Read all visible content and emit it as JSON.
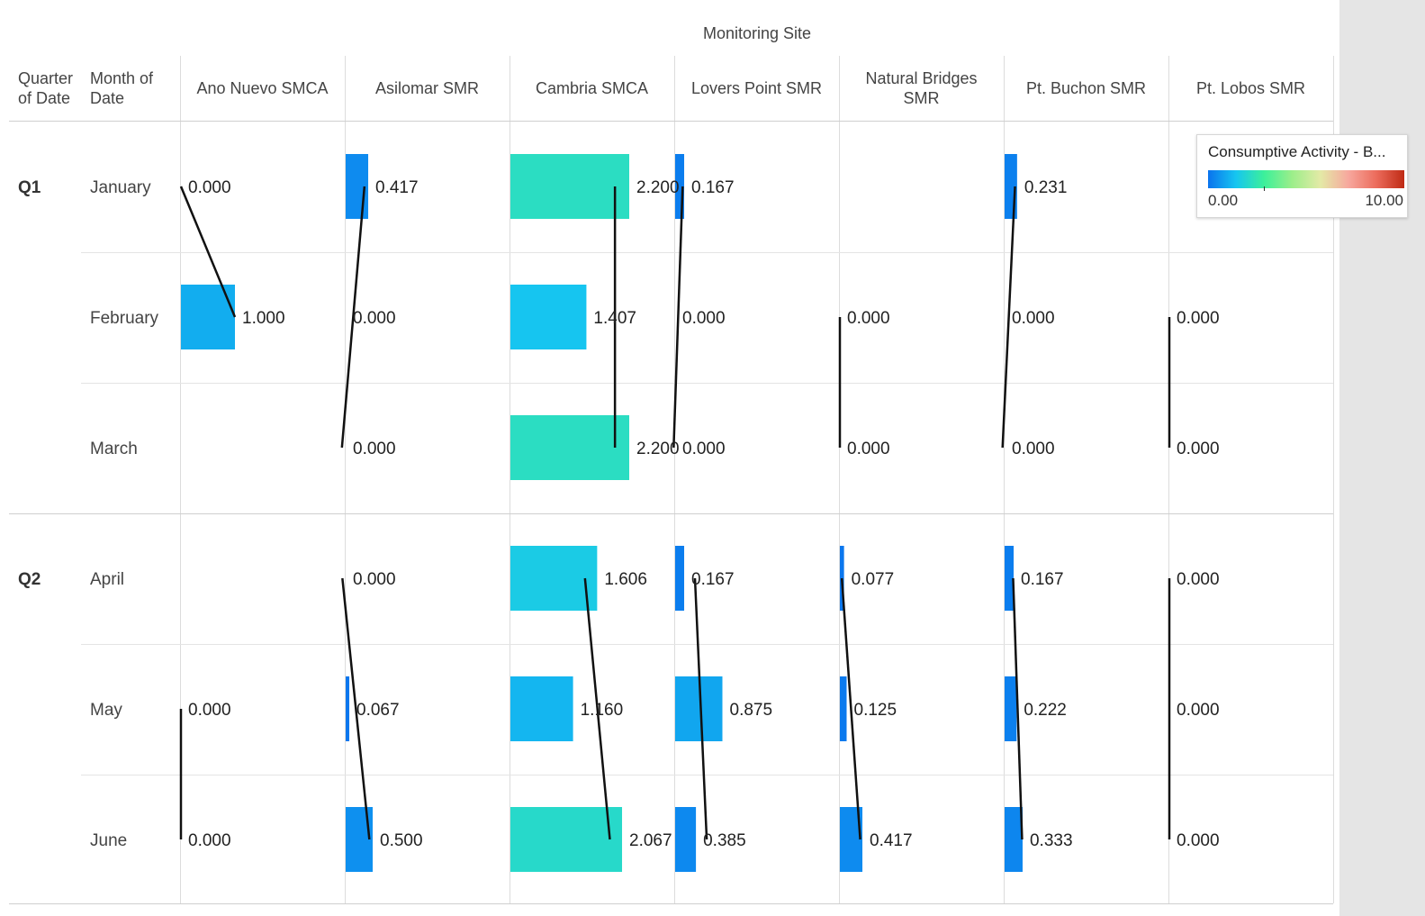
{
  "chart_data": {
    "type": "table",
    "column_header_title": "Monitoring Site",
    "row_headers": [
      "Quarter of Date",
      "Month of Date"
    ],
    "columns": [
      "Ano Nuevo SMCA",
      "Asilomar SMR",
      "Cambria SMCA",
      "Lovers Point SMR",
      "Natural Bridges SMR",
      "Pt. Buchon SMR",
      "Pt. Lobos SMR"
    ],
    "quarters": [
      {
        "label": "Q1",
        "months": [
          "January",
          "February",
          "March"
        ]
      },
      {
        "label": "Q2",
        "months": [
          "April",
          "May",
          "June"
        ]
      }
    ],
    "months": [
      "January",
      "February",
      "March",
      "April",
      "May",
      "June"
    ],
    "values": [
      [
        0.0,
        0.417,
        2.2,
        0.167,
        null,
        0.231,
        null
      ],
      [
        1.0,
        0.0,
        1.407,
        0.0,
        0.0,
        0.0,
        0.0
      ],
      [
        null,
        0.0,
        2.2,
        0.0,
        0.0,
        0.0,
        0.0
      ],
      [
        null,
        0.0,
        1.606,
        0.167,
        0.077,
        0.167,
        0.0
      ],
      [
        0.0,
        0.067,
        1.16,
        0.875,
        0.125,
        0.222,
        0.0
      ],
      [
        0.0,
        0.5,
        2.067,
        0.385,
        0.417,
        0.333,
        0.0
      ]
    ],
    "value_format": "0.000",
    "bar_scale_max": 2.5,
    "trend_lines": true,
    "legend": {
      "title": "Consumptive Activity - B...",
      "min_label": "0.00",
      "max_label": "10.00",
      "min": 0,
      "max": 10,
      "colors": [
        "#0a73ee",
        "#16c6f0",
        "#3cf09a",
        "#9cee8a",
        "#e3eaa6",
        "#f7a89e",
        "#ec6c5c",
        "#bf2a14"
      ],
      "placement": "top-right"
    }
  }
}
